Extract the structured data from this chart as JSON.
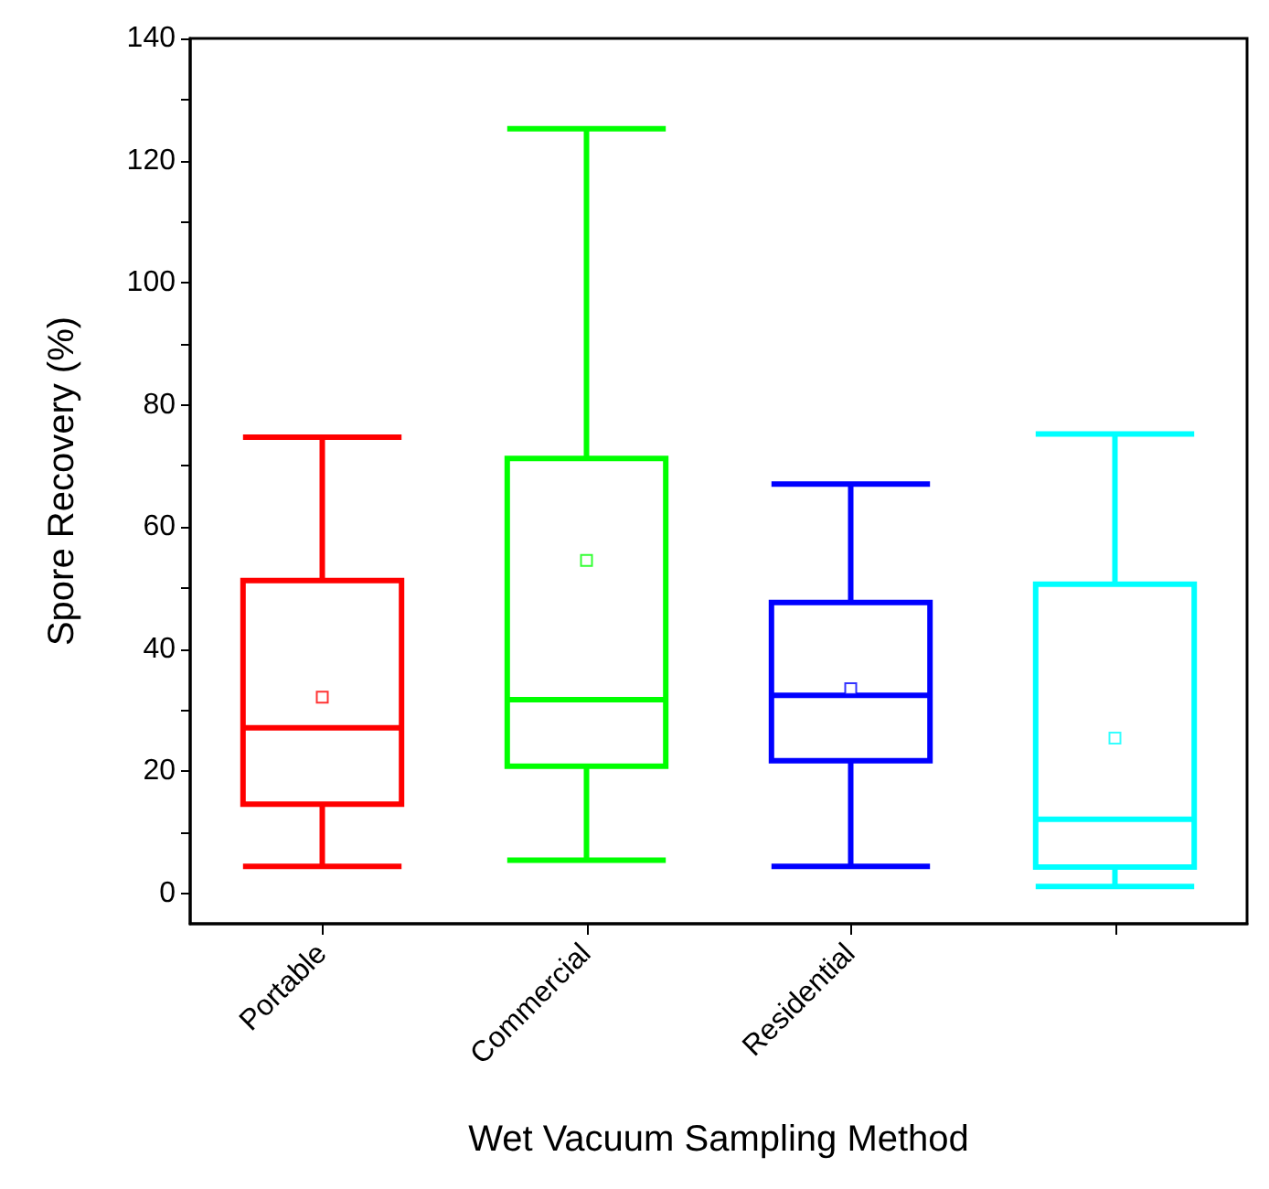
{
  "chart_data": {
    "type": "box",
    "xlabel": "Wet Vacuum Sampling Method",
    "ylabel": "Spore Recovery (%)",
    "categories": [
      "Portable",
      "Commercial",
      "Residential",
      null
    ],
    "colors": [
      "#ff0000",
      "#00ff00",
      "#0000ff",
      "#00ffff"
    ],
    "boxes": [
      {
        "low": 4.4,
        "q1": 14.6,
        "median": 27.1,
        "q3": 51.2,
        "high": 74.7,
        "mean": 32.1
      },
      {
        "low": 5.4,
        "q1": 20.8,
        "median": 31.7,
        "q3": 71.2,
        "high": 125.2,
        "mean": 54.5
      },
      {
        "low": 4.4,
        "q1": 21.7,
        "median": 32.4,
        "q3": 47.6,
        "high": 67,
        "mean": 33.5
      },
      {
        "low": 1.1,
        "q1": 4.3,
        "median": 12.1,
        "q3": 50.6,
        "high": 75.2,
        "mean": 25.4
      }
    ],
    "ylim": [
      -5,
      140
    ],
    "yticks": [
      0,
      {
        "value": 10,
        "label": null
      },
      20,
      {
        "value": 30,
        "label": null
      },
      40,
      {
        "value": 50,
        "label": null
      },
      60,
      {
        "value": 70,
        "label": null
      },
      80,
      {
        "value": 90,
        "label": null
      },
      100,
      {
        "value": 110,
        "label": null
      },
      120,
      {
        "value": 130,
        "label": null
      },
      140
    ],
    "marker": "square",
    "grid": false
  }
}
